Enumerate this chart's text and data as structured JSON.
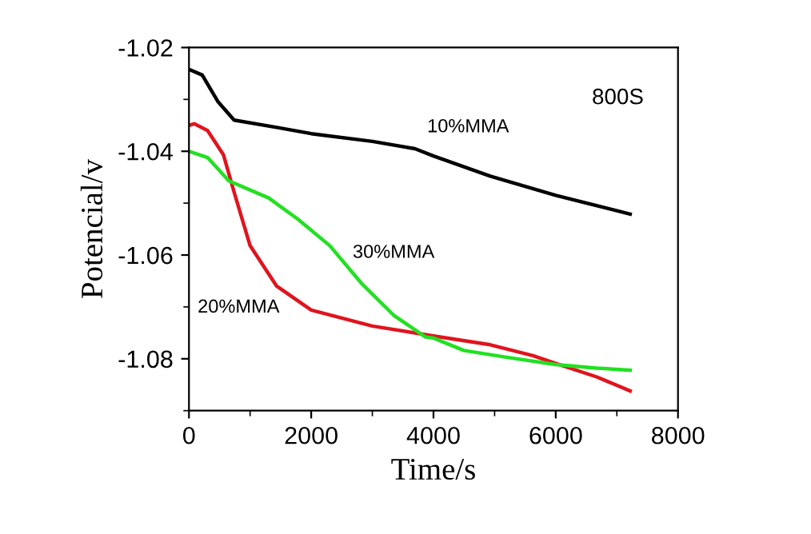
{
  "chart_data": {
    "type": "line",
    "xlabel": "Time/s",
    "ylabel": "Potencial/v",
    "annotations": [
      "800S"
    ],
    "xlim": [
      0,
      8000
    ],
    "xticks": [
      0,
      2000,
      4000,
      6000,
      8000
    ],
    "ylim": [
      -1.09,
      -1.02
    ],
    "yticks": [
      -1.08,
      -1.06,
      -1.04,
      -1.02
    ],
    "grid": false,
    "legend": false,
    "marker": "none",
    "line_style": "solid",
    "series": [
      {
        "name": "10%MMA",
        "color": "#000000",
        "x": [
          0,
          217,
          478,
          739,
          1435,
          2000,
          3000,
          3696,
          4000,
          4930,
          6000,
          7217
        ],
        "values": [
          -1.0242,
          -1.0253,
          -1.0305,
          -1.034,
          -1.0354,
          -1.0366,
          -1.0381,
          -1.0395,
          -1.0409,
          -1.0448,
          -1.0485,
          -1.0521
        ]
      },
      {
        "name": "20%MMA",
        "color": "#e0141e",
        "x": [
          0,
          87,
          304,
          565,
          739,
          1000,
          1435,
          2000,
          3000,
          4000,
          4930,
          5626,
          6000,
          6670,
          7217
        ],
        "values": [
          -1.035,
          -1.0347,
          -1.036,
          -1.0407,
          -1.0479,
          -1.0582,
          -1.066,
          -1.0706,
          -1.0737,
          -1.0756,
          -1.0773,
          -1.0794,
          -1.0809,
          -1.0835,
          -1.0862
        ]
      },
      {
        "name": "30%MMA",
        "color": "#22e022",
        "x": [
          0,
          304,
          652,
          1304,
          1783,
          2304,
          2826,
          3348,
          3870,
          4000,
          4496,
          5191,
          6000,
          6670,
          7217
        ],
        "values": [
          -1.04,
          -1.0412,
          -1.0457,
          -1.049,
          -1.0531,
          -1.0582,
          -1.0655,
          -1.0716,
          -1.0758,
          -1.076,
          -1.0784,
          -1.0797,
          -1.0811,
          -1.0818,
          -1.0822
        ]
      }
    ]
  }
}
